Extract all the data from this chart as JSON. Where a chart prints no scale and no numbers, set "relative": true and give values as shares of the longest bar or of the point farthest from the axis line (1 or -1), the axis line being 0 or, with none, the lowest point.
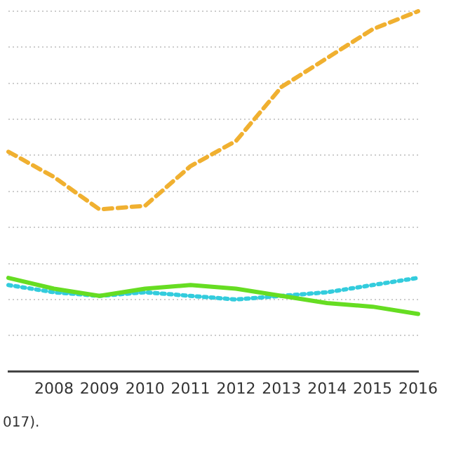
{
  "chart_data": {
    "type": "line",
    "relative": true,
    "categories": [
      null,
      "2008",
      "2009",
      "2010",
      "2011",
      "2012",
      "2013",
      "2014",
      "2015",
      "2016"
    ],
    "series": [
      {
        "color": "#f0b030",
        "line_style": "dashed",
        "values": [
          0.61,
          0.54,
          0.45,
          0.46,
          0.57,
          0.64,
          0.79,
          0.87,
          0.95,
          1
        ]
      },
      {
        "color": "#66dd22",
        "line_style": "solid",
        "values": [
          0.26,
          0.23,
          0.21,
          0.23,
          0.24,
          0.23,
          0.21,
          0.19,
          0.18,
          0.16
        ]
      },
      {
        "color": "#33ccdd",
        "line_style": "dotted",
        "values": [
          0.24,
          0.22,
          0.21,
          0.22,
          0.21,
          0.2,
          0.21,
          0.22,
          0.24,
          0.26
        ]
      }
    ],
    "grid": "y",
    "legend": false,
    "marker": "none",
    "annotations": [
      "017)."
    ]
  }
}
